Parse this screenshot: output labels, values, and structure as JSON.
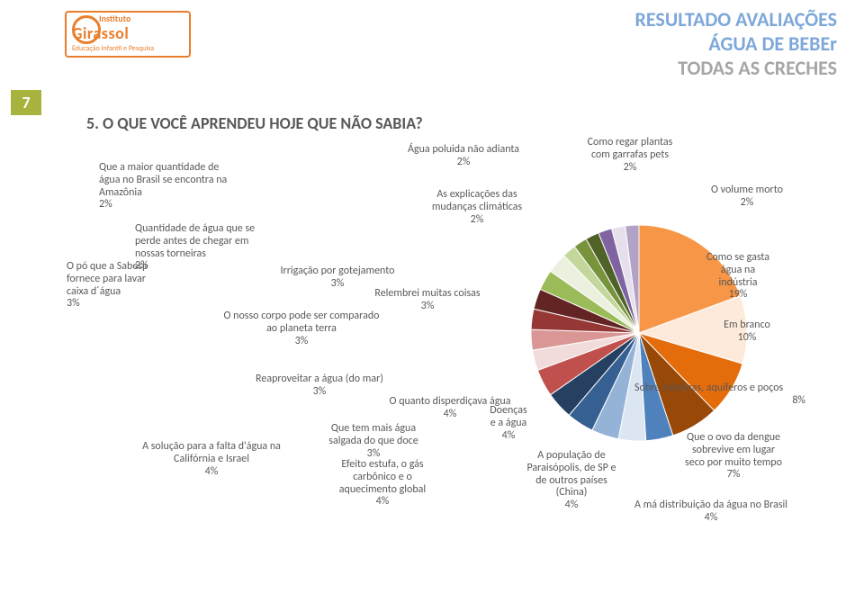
{
  "logo": {
    "inst": "Instituto",
    "name": "Girassol",
    "tag": "Educação Infantil e Pesquisa"
  },
  "page_number": "7",
  "header": {
    "line1": "RESULTADO AVALIAÇÕES",
    "line2": "ÁGUA DE BEBEr",
    "line3": "TODAS AS CRECHES"
  },
  "question": "5. O QUE VOCÊ APRENDEU HOJE QUE NÃO SABIA?",
  "chart": {
    "type": "pie",
    "background_color": "#ffffff",
    "label_fontsize": 12,
    "leader_color": "#7f7f7f",
    "slices": [
      {
        "label": "Como se gasta água na indústria",
        "value": 19,
        "pct": "19%",
        "color": "#f79646"
      },
      {
        "label": "Em branco",
        "value": 10,
        "pct": "10%",
        "color": "#fdeada"
      },
      {
        "label": "Sobre cisternas, aquíferos e poços",
        "value": 8,
        "pct": "8%",
        "color": "#e46c0a"
      },
      {
        "label": "Que o ovo da dengue sobrevive em lugar seco por muito tempo",
        "value": 7,
        "pct": "7%",
        "color": "#984807"
      },
      {
        "label": "A má distribuição da água no Brasil",
        "value": 4,
        "pct": "4%",
        "color": "#4f81bd"
      },
      {
        "label": "A população de Paraisópolis, de SP e de outros países (China)",
        "value": 4,
        "pct": "4%",
        "color": "#dce6f2"
      },
      {
        "label": "Doenças e a água",
        "value": 4,
        "pct": "4%",
        "color": "#95b3d7"
      },
      {
        "label": "O quanto disperdiçava água",
        "value": 4,
        "pct": "4%",
        "color": "#376092"
      },
      {
        "label": "Efeito estufa, o gás carbônico e o aquecimento global",
        "value": 4,
        "pct": "4%",
        "color": "#254061"
      },
      {
        "label": "A solução para a falta d'água na Califórnia e Israel",
        "value": 4,
        "pct": "4%",
        "color": "#c0504d"
      },
      {
        "label": "Que tem mais água salgada do que doce",
        "value": 3,
        "pct": "3%",
        "color": "#f2dcdb"
      },
      {
        "label": "Reaproveitar a água (do mar)",
        "value": 3,
        "pct": "3%",
        "color": "#d99694"
      },
      {
        "label": "O nosso corpo pode ser comparado ao planeta terra",
        "value": 3,
        "pct": "3%",
        "color": "#953735"
      },
      {
        "label": "Relembrei muitas coisas",
        "value": 3,
        "pct": "3%",
        "color": "#632523"
      },
      {
        "label": "O pó que a Sabesp fornece para lavar caixa d´água",
        "value": 3,
        "pct": "3%",
        "color": "#9bbb59"
      },
      {
        "label": "Irrigação por gotejamento",
        "value": 3,
        "pct": "3%",
        "color": "#ebf1de"
      },
      {
        "label": "Quantidade de água que se perde antes de chegar em nossas torneiras",
        "value": 2,
        "pct": "2%",
        "color": "#c3d69b"
      },
      {
        "label": "Que a maior quantidade de água no Brasil se encontra na Amazônia",
        "value": 2,
        "pct": "2%",
        "color": "#77933c"
      },
      {
        "label": "Água poluida não adianta",
        "value": 2,
        "pct": "2%",
        "color": "#4f6228"
      },
      {
        "label": "As explicações das mudanças climáticas",
        "value": 2,
        "pct": "2%",
        "color": "#8064a2"
      },
      {
        "label": "Como regar plantas com garrafas pets",
        "value": 2,
        "pct": "2%",
        "color": "#e6e0ec"
      },
      {
        "label": "O volume morto",
        "value": 2,
        "pct": "2%",
        "color": "#b3a2c7"
      }
    ]
  },
  "labels": {
    "amazonia_a": "Que a maior quantidade de",
    "amazonia_b": "água no Brasil se encontra na",
    "amazonia_c": "Amazônia",
    "amazonia_p": "2%",
    "torneiras_a": "Quantidade de água que se",
    "torneiras_b": "perde antes de chegar em",
    "torneiras_c": "nossas torneiras",
    "torneiras_p": "2%",
    "sabesp_a": "O pó que a Sabesp",
    "sabesp_b": "fornece para lavar",
    "sabesp_c": "caixa d´água",
    "sabesp_p": "3%",
    "irrig_a": "Irrigação por gotejamento",
    "irrig_p": "3%",
    "corpo_a": "O nosso corpo pode ser comparado",
    "corpo_b": "ao planeta terra",
    "corpo_p": "3%",
    "relembrei_a": "Relembrei muitas coisas",
    "relembrei_p": "3%",
    "poluida_a": "Água poluida não adianta",
    "poluida_p": "2%",
    "clima_a": "As explicações das",
    "clima_b": "mudanças climáticas",
    "clima_p": "2%",
    "regar_a": "Como regar plantas",
    "regar_b": "com garrafas pets",
    "regar_p": "2%",
    "morto_a": "O volume morto",
    "morto_p": "2%",
    "industria_a": "Como se gasta",
    "industria_b": "água na",
    "industria_c": "indústria",
    "industria_p": "19%",
    "branco_a": "Em branco",
    "branco_p": "10%",
    "cisternas_a": "Sobre cisternas, aquíferos e poços",
    "cisternas_p": "8%",
    "dengue_a": "Que o ovo da dengue",
    "dengue_b": "sobrevive em lugar",
    "dengue_c": "seco por muito tempo",
    "dengue_p": "7%",
    "madist_a": "A má distribuição da água no Brasil",
    "madist_p": "4%",
    "popul_a": "A população de",
    "popul_b": "Paraisópolis, de SP e",
    "popul_c": "de outros países",
    "popul_d": "(China)",
    "popul_p": "4%",
    "doencas_a": "Doenças",
    "doencas_b": "e a água",
    "doencas_p": "4%",
    "disp_a": "O quanto disperdiçava água",
    "disp_p": "4%",
    "estufa_a": "Efeito estufa, o gás",
    "estufa_b": "carbônico e o",
    "estufa_c": "aquecimento global",
    "estufa_p": "4%",
    "salgada_a": "Que tem mais água",
    "salgada_b": "salgada do que doce",
    "salgada_p": "3%",
    "calif_a": "A solução para a falta d'água na",
    "calif_b": "Califórnia e Israel",
    "calif_p": "4%",
    "reap_a": "Reaproveitar a água (do mar)",
    "reap_p": "3%"
  }
}
